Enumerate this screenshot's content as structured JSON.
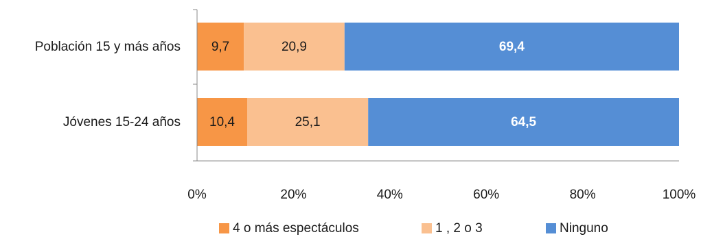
{
  "chart_data": {
    "type": "bar",
    "orientation": "horizontal",
    "stacked": "percent",
    "categories": [
      "Población 15 y más años",
      "Jóvenes 15-24 años"
    ],
    "series": [
      {
        "name": "4 o más espectáculos",
        "values": [
          9.7,
          10.4
        ],
        "labels": [
          "9,7",
          "10,4"
        ],
        "color": "#f79646",
        "label_color": "#1a1a1a",
        "label_bold": false
      },
      {
        "name": "1 , 2 o 3",
        "values": [
          20.9,
          25.1
        ],
        "labels": [
          "20,9",
          "25,1"
        ],
        "color": "#fac090",
        "label_color": "#1a1a1a",
        "label_bold": false
      },
      {
        "name": "Ninguno",
        "values": [
          69.4,
          64.5
        ],
        "labels": [
          "69,4",
          "64,5"
        ],
        "color": "#558ed5",
        "label_color": "#ffffff",
        "label_bold": true
      }
    ],
    "x_ticks": [
      "0%",
      "20%",
      "40%",
      "60%",
      "80%",
      "100%"
    ],
    "xlim": [
      0,
      100
    ],
    "legend": "bottom",
    "grid": false
  }
}
